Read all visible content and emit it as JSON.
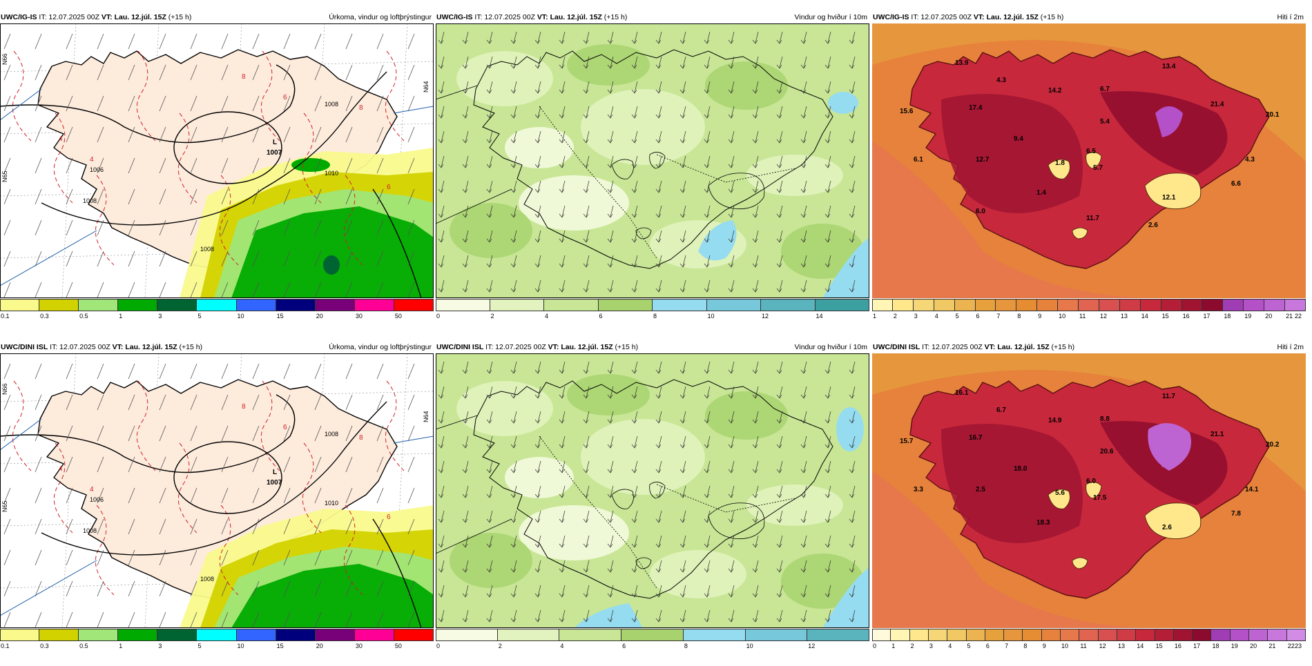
{
  "rows": [
    {
      "model": "UWC/IG-IS",
      "it": "IT: 12.07.2025 00Z",
      "vt_prefix": "VT:",
      "vt": "Lau. 12.júl. 15Z",
      "lead": "(+15 h)",
      "pressure_center": {
        "sym": "L",
        "value": "1007"
      },
      "temp_labels": [
        "13.9",
        "4.3",
        "14.2",
        "6.7",
        "13.4",
        "15.6",
        "17.4",
        "5.4",
        "21.4",
        "20.1",
        "9.4",
        "6.5",
        "6.1",
        "12.7",
        "1.8",
        "5.7",
        "6.6",
        "4.3",
        "1.4",
        "12.1",
        "6.0",
        "11.7",
        "2.6"
      ]
    },
    {
      "model": "UWC/DINI ISL",
      "it": "IT: 12.07.2025 00Z",
      "vt_prefix": "VT:",
      "vt": "Lau. 12.júl. 15Z",
      "lead": "(+15 h)",
      "pressure_center": {
        "sym": "L",
        "value": "1007"
      },
      "temp_labels": [
        "16.1",
        "6.7",
        "14.9",
        "8.8",
        "11.7",
        "15.7",
        "16.7",
        "20.6",
        "21.1",
        "20.2",
        "18.0",
        "6.0",
        "3.3",
        "2.5",
        "5.6",
        "17.5",
        "7.8",
        "14.1",
        "18.3",
        "2.6"
      ]
    }
  ],
  "panel_titles": {
    "precip": "Úrkoma, vindur og loftþrýstingur",
    "wind": "Vindur og hviður í 10m",
    "temp": "Hiti í 2m"
  },
  "isobar_labels": [
    "1008",
    "1008",
    "1010",
    "1008",
    "1006"
  ],
  "red_labels": [
    "6",
    "8",
    "4",
    "8",
    "6",
    "4"
  ],
  "lat_labels": [
    "N66",
    "N65",
    "N64"
  ],
  "colorbars": {
    "precip": {
      "ticks": [
        "0.1",
        "0.3",
        "0.5",
        "1",
        "3",
        "5",
        "10",
        "15",
        "20",
        "30",
        "50"
      ],
      "colors": [
        "#fafa8c",
        "#d2d200",
        "#a0e678",
        "#00aa00",
        "#006432",
        "#00ffff",
        "#3264ff",
        "#00007d",
        "#780078",
        "#ff0096",
        "#ff0000"
      ]
    },
    "wind_top": {
      "ticks": [
        "0",
        "2",
        "4",
        "6",
        "8",
        "10",
        "12",
        "14"
      ],
      "colors": [
        "#f7fbe3",
        "#e3f3c0",
        "#c8e696",
        "#a8d26e",
        "#96dcf0",
        "#78c8dc",
        "#5ab4be",
        "#3ca0a0"
      ]
    },
    "wind_bottom": {
      "ticks": [
        "0",
        "2",
        "4",
        "6",
        "8",
        "10",
        "12"
      ],
      "colors": [
        "#f7fbe3",
        "#e3f3c0",
        "#c8e696",
        "#a8d26e",
        "#96dcf0",
        "#78c8dc",
        "#5ab4be"
      ]
    },
    "temp_top": {
      "ticks": [
        "1",
        "2",
        "3",
        "4",
        "5",
        "6",
        "7",
        "8",
        "9",
        "10",
        "11",
        "12",
        "13",
        "14",
        "15",
        "16",
        "17",
        "18",
        "19",
        "20",
        "21",
        "22"
      ],
      "colors": [
        "#fff5b4",
        "#ffe88c",
        "#f5d778",
        "#f0c864",
        "#ebb450",
        "#e6a03c",
        "#e6963c",
        "#e68c32",
        "#e6823c",
        "#e6784b",
        "#e06450",
        "#d85050",
        "#d03c46",
        "#c8283c",
        "#b41e37",
        "#a01432",
        "#8c0a2d",
        "#a03cb4",
        "#b450c8",
        "#be64d2",
        "#c878dc"
      ]
    },
    "temp_bottom": {
      "ticks": [
        "0",
        "1",
        "2",
        "3",
        "4",
        "5",
        "6",
        "7",
        "8",
        "9",
        "10",
        "11",
        "12",
        "13",
        "14",
        "15",
        "16",
        "17",
        "18",
        "19",
        "20",
        "21",
        "22",
        "23"
      ],
      "colors": [
        "#fffadc",
        "#fff5b4",
        "#ffe88c",
        "#f5d778",
        "#f0c864",
        "#ebb450",
        "#e6a03c",
        "#e6963c",
        "#e68c32",
        "#e6823c",
        "#e6784b",
        "#e06450",
        "#d85050",
        "#d03c46",
        "#c8283c",
        "#b41e37",
        "#a01432",
        "#8c0a2d",
        "#a03cb4",
        "#b450c8",
        "#be64d2",
        "#c878dc",
        "#d28ce6"
      ]
    }
  },
  "legend_colors": {
    "land_precip": "#fdebdc",
    "sea_precip": "#ffffff",
    "isobar": "#000000",
    "temp_contour": "#d0202a",
    "wind_base": "#c8e696",
    "temp_sea": "#e6823c",
    "temp_land": "#c8283c"
  }
}
